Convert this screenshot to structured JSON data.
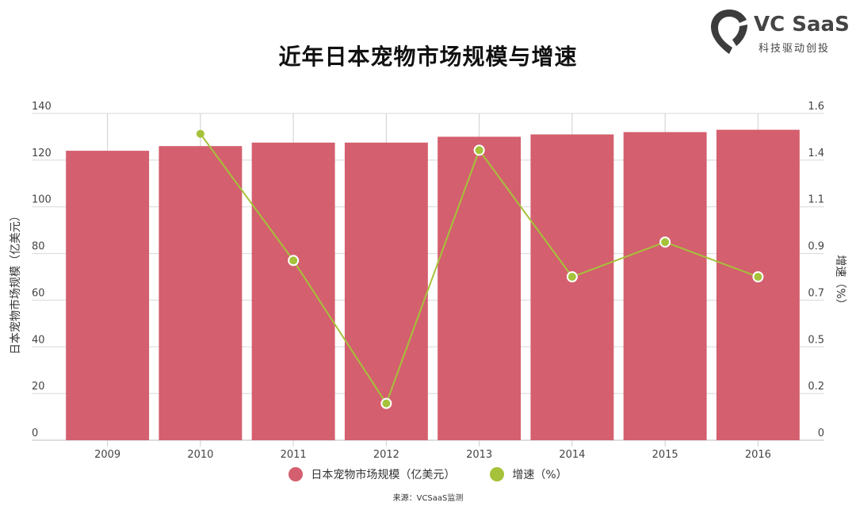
{
  "title": "近年日本宠物市场规模与增速",
  "logo": {
    "main": "VC SaaS",
    "sub": "科技驱动创投"
  },
  "source": "来源：VCSaaS监测",
  "chart_data": {
    "type": "bar+line",
    "title": "近年日本宠物市场规模与增速",
    "categories": [
      "2009",
      "2010",
      "2011",
      "2012",
      "2013",
      "2014",
      "2015",
      "2016"
    ],
    "series": [
      {
        "name": "日本宠物市场规模（亿美元）",
        "type": "bar",
        "axis": "left",
        "color": "#d45f6e",
        "values": [
          124,
          126,
          127.5,
          127.5,
          130,
          131,
          132,
          133
        ]
      },
      {
        "name": "增速（%）",
        "type": "line",
        "axis": "right",
        "color": "#a5c23a",
        "values": [
          null,
          1.5,
          0.88,
          0.18,
          1.42,
          0.8,
          0.97,
          0.8
        ]
      }
    ],
    "left_axis": {
      "label": "日本宠物市场规模（亿美元）",
      "min": 0,
      "max": 140,
      "ticks": [
        "0",
        "20",
        "40",
        "60",
        "80",
        "100",
        "120",
        "140"
      ]
    },
    "right_axis": {
      "label": "增速（%）",
      "min": 0,
      "max": 1.6,
      "ticks": [
        "0",
        "0.2",
        "0.5",
        "0.7",
        "0.9",
        "1.1",
        "1.4",
        "1.6"
      ]
    },
    "grid": true,
    "legend_position": "bottom"
  }
}
